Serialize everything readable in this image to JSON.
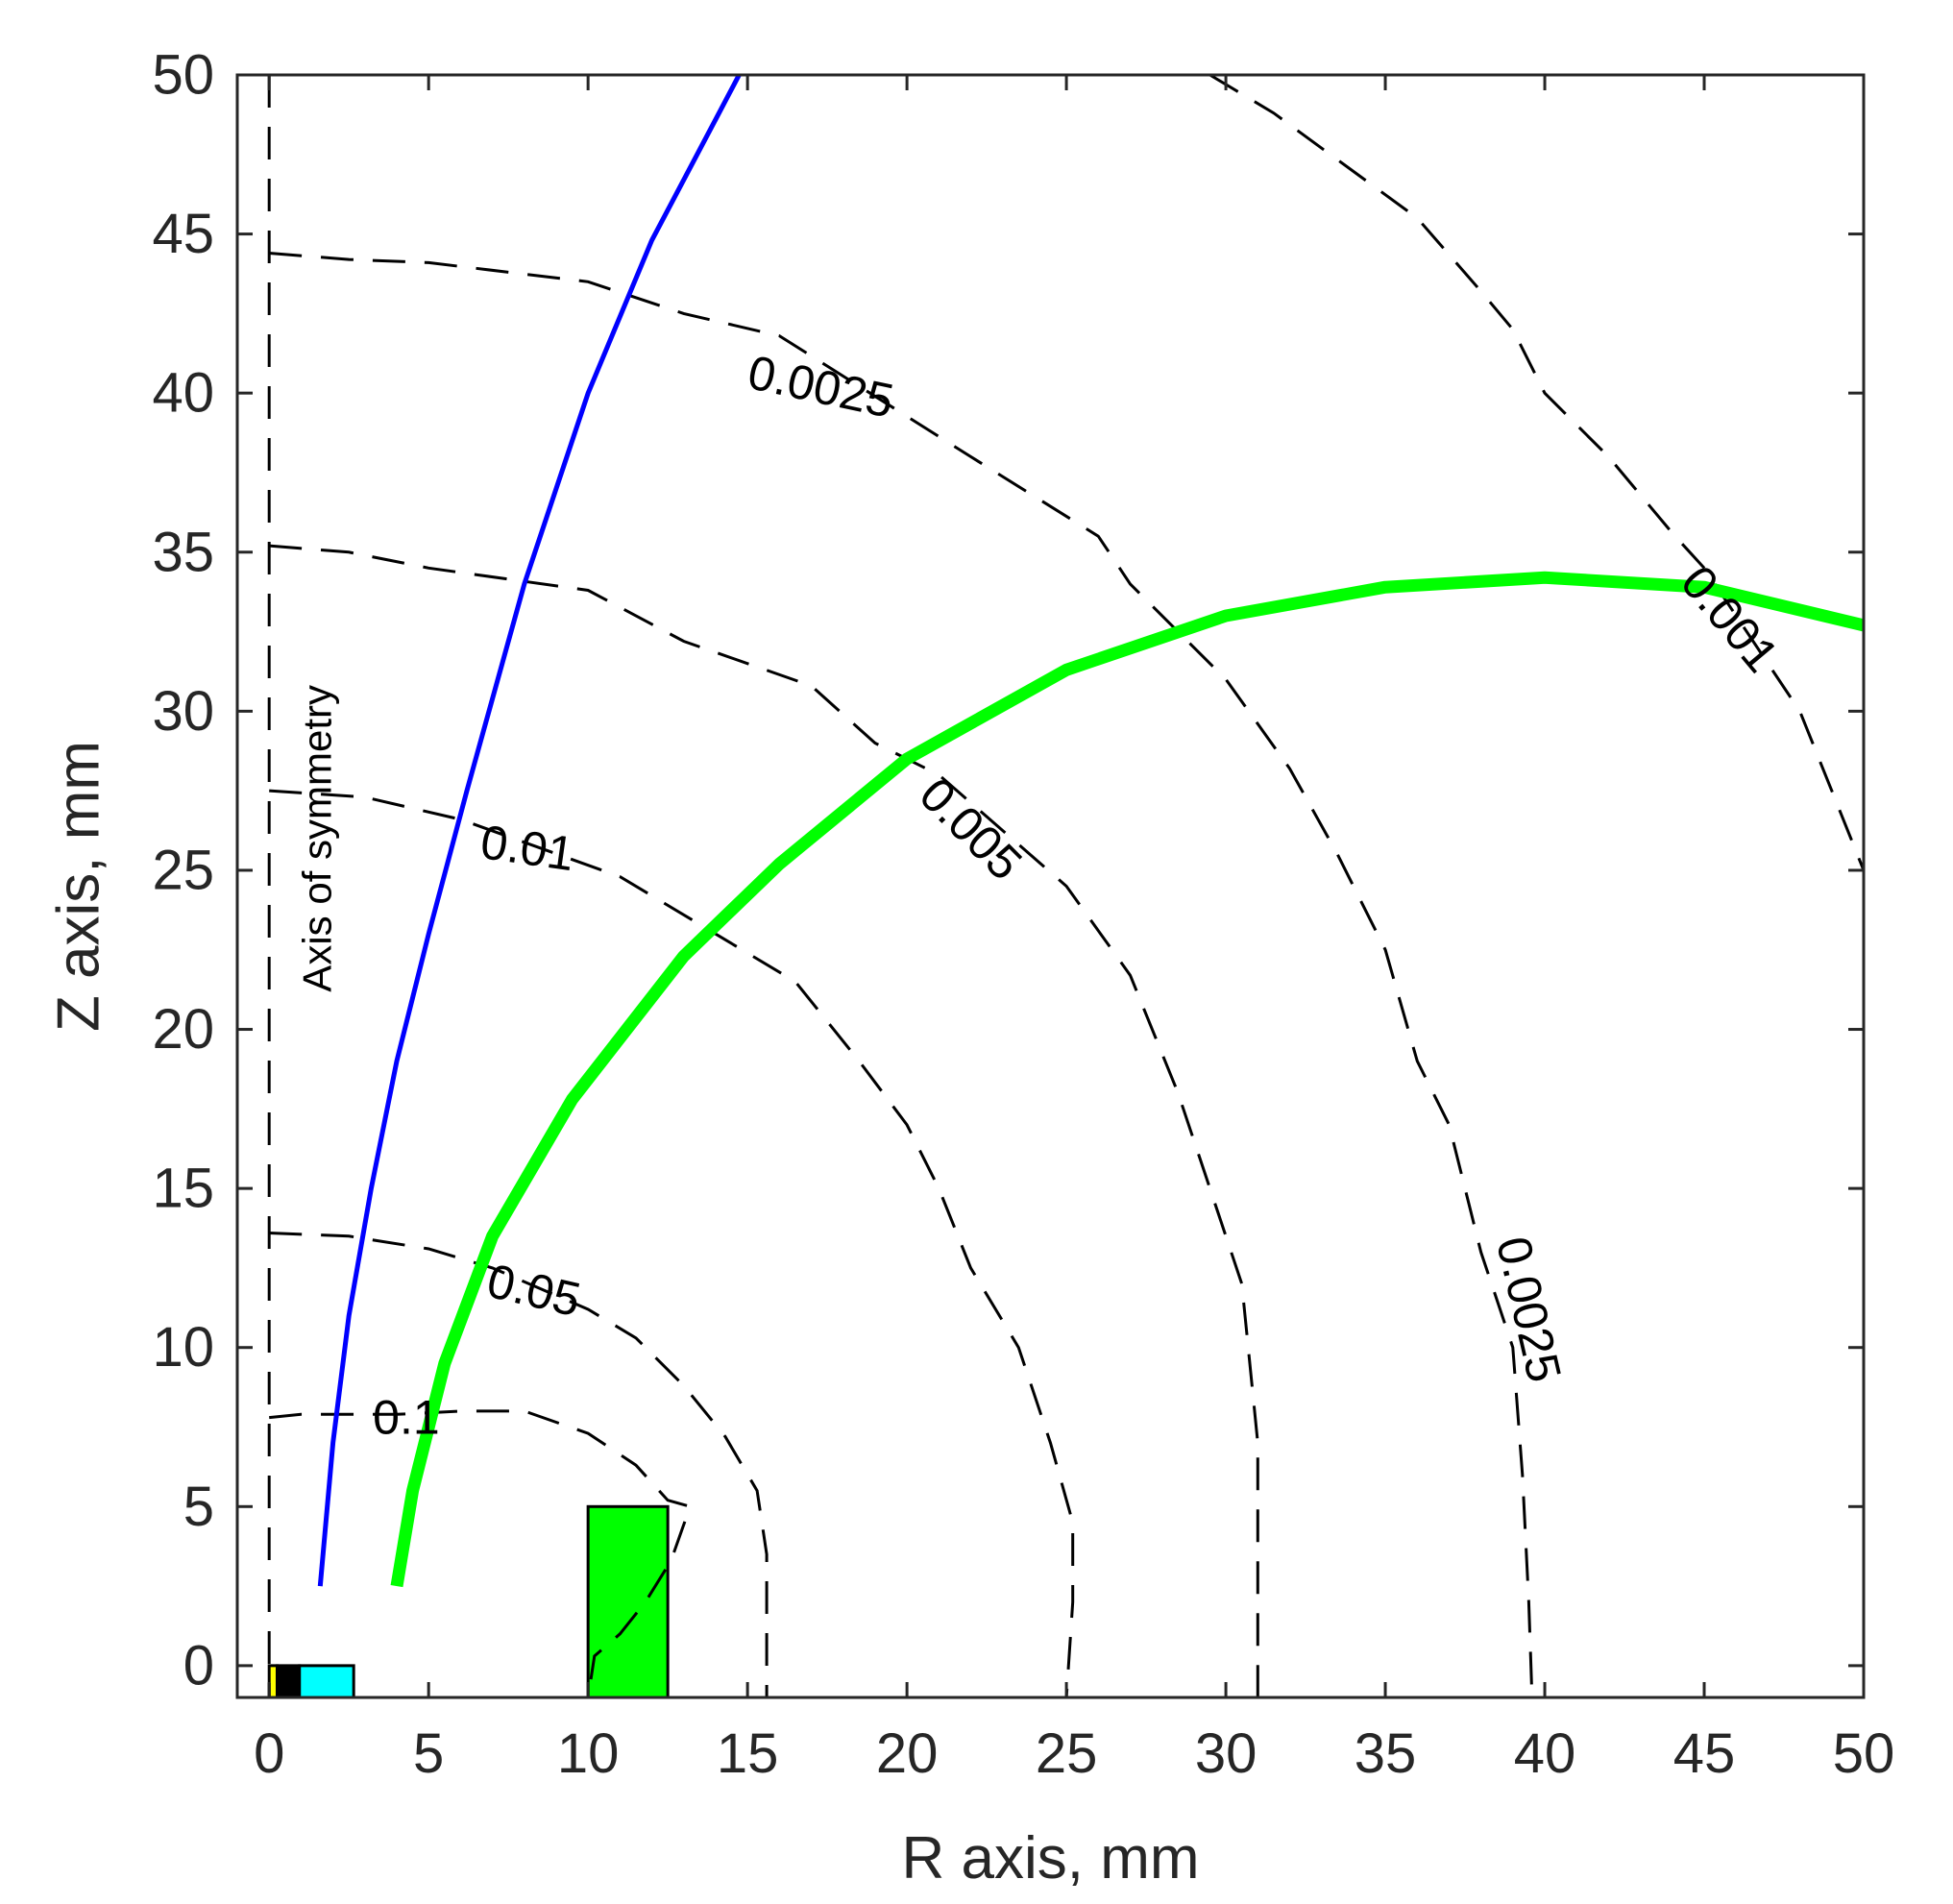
{
  "chart_data": {
    "type": "line",
    "title": "",
    "xlabel": "R axis, mm",
    "ylabel": "Z axis, mm",
    "xlim": [
      -1,
      50
    ],
    "ylim": [
      -1,
      50
    ],
    "x_ticks": [
      0,
      5,
      10,
      15,
      20,
      25,
      30,
      35,
      40,
      45,
      50
    ],
    "y_ticks": [
      0,
      5,
      10,
      15,
      20,
      25,
      30,
      35,
      40,
      45,
      50
    ],
    "grid": false,
    "legend": "none",
    "annotations": [
      {
        "text": "Axis of symmetry",
        "x": 1.5,
        "y": 26
      }
    ],
    "contours": [
      {
        "level": "0.1",
        "labels": [
          {
            "text": "0.1",
            "x": 4.3,
            "y": 7.8,
            "angle": 0
          }
        ],
        "points": [
          [
            0,
            7.8
          ],
          [
            1,
            7.9
          ],
          [
            2,
            7.9
          ],
          [
            4,
            7.9
          ],
          [
            6,
            8.0
          ],
          [
            8,
            8.0
          ],
          [
            10,
            7.3
          ],
          [
            11.5,
            6.3
          ],
          [
            12.5,
            5.2
          ],
          [
            13.2,
            5.0
          ],
          [
            12.6,
            3.3
          ],
          [
            11.8,
            2.0
          ],
          [
            11,
            1.0
          ],
          [
            10.2,
            0.3
          ],
          [
            10,
            -1
          ]
        ]
      },
      {
        "level": "0.05",
        "labels": [
          {
            "text": "0.05",
            "x": 8.3,
            "y": 11.8,
            "angle": 13
          }
        ],
        "points": [
          [
            0,
            13.6
          ],
          [
            2.5,
            13.5
          ],
          [
            5,
            13.1
          ],
          [
            7,
            12.5
          ],
          [
            10,
            11.2
          ],
          [
            11.5,
            10.3
          ],
          [
            13,
            8.8
          ],
          [
            14.3,
            7.2
          ],
          [
            15.3,
            5.5
          ],
          [
            15.6,
            3.5
          ],
          [
            15.6,
            1.5
          ],
          [
            15.6,
            -1
          ]
        ]
      },
      {
        "level": "0.01",
        "labels": [
          {
            "text": "0.01",
            "x": 8.1,
            "y": 25.7,
            "angle": 8
          }
        ],
        "points": [
          [
            0,
            27.5
          ],
          [
            3,
            27.3
          ],
          [
            6,
            26.6
          ],
          [
            11,
            24.8
          ],
          [
            14,
            23.0
          ],
          [
            16.5,
            21.5
          ],
          [
            18.5,
            19.0
          ],
          [
            20,
            17.0
          ],
          [
            21,
            15.0
          ],
          [
            22,
            12.5
          ],
          [
            23.5,
            10.0
          ],
          [
            24.5,
            7.0
          ],
          [
            25.2,
            4.5
          ],
          [
            25.2,
            2.0
          ],
          [
            25,
            -1
          ]
        ]
      },
      {
        "level": "0.005",
        "labels": [
          {
            "text": "0.005",
            "x": 22,
            "y": 26.3,
            "angle": 45
          }
        ],
        "points": [
          [
            0,
            35.2
          ],
          [
            2.5,
            35.0
          ],
          [
            5,
            34.5
          ],
          [
            10,
            33.8
          ],
          [
            13,
            32.2
          ],
          [
            17,
            30.8
          ],
          [
            19,
            29.0
          ],
          [
            21,
            28.0
          ],
          [
            25,
            24.5
          ],
          [
            27,
            21.7
          ],
          [
            28.5,
            18.0
          ],
          [
            29.5,
            15.0
          ],
          [
            30.5,
            12.0
          ],
          [
            31,
            7.0
          ],
          [
            31,
            2.0
          ],
          [
            31,
            -1
          ]
        ]
      },
      {
        "level": "0.0025",
        "labels": [
          {
            "text": "0.0025",
            "x": 17.3,
            "y": 40.2,
            "angle": 12
          },
          {
            "text": "0.0025",
            "x": 39.5,
            "y": 11.2,
            "angle": 77
          }
        ],
        "points": [
          [
            0,
            44.4
          ],
          [
            2.5,
            44.2
          ],
          [
            5,
            44.1
          ],
          [
            10,
            43.5
          ],
          [
            13,
            42.5
          ],
          [
            16,
            41.8
          ],
          [
            22,
            38.0
          ],
          [
            26,
            35.5
          ],
          [
            27,
            34.0
          ],
          [
            30,
            31.0
          ],
          [
            32,
            28.2
          ],
          [
            33.5,
            25.5
          ],
          [
            35,
            22.5
          ],
          [
            36,
            19.0
          ],
          [
            37,
            17.0
          ],
          [
            38,
            13.0
          ],
          [
            39,
            10.0
          ],
          [
            39.3,
            6.0
          ],
          [
            39.5,
            2.0
          ],
          [
            39.6,
            -1
          ]
        ]
      },
      {
        "level": "0.001",
        "labels": [
          {
            "text": "0.001",
            "x": 45.8,
            "y": 32.9,
            "angle": 50
          }
        ],
        "points": [
          [
            29.5,
            50
          ],
          [
            31.5,
            48.8
          ],
          [
            33,
            47.7
          ],
          [
            36,
            45.5
          ],
          [
            38,
            43.2
          ],
          [
            39,
            42.0
          ],
          [
            40,
            40.0
          ],
          [
            42,
            38.0
          ],
          [
            44,
            35.6
          ],
          [
            45,
            34.5
          ],
          [
            47,
            31.5
          ],
          [
            48,
            30.0
          ],
          [
            49,
            27.5
          ],
          [
            50,
            25.0
          ]
        ]
      }
    ],
    "series": [
      {
        "color": "#0000ff",
        "width": 5,
        "points": [
          [
            1.6,
            2.5
          ],
          [
            2,
            7.0
          ],
          [
            2.5,
            11.0
          ],
          [
            3.2,
            15.0
          ],
          [
            4.0,
            19.0
          ],
          [
            5.0,
            23.0
          ],
          [
            6.2,
            27.5
          ],
          [
            8,
            34.0
          ],
          [
            10,
            40.0
          ],
          [
            12,
            44.8
          ],
          [
            14,
            48.6
          ],
          [
            15,
            50.5
          ]
        ]
      },
      {
        "color": "#00ff00",
        "width": 13,
        "points": [
          [
            4.0,
            2.5
          ],
          [
            4.5,
            5.5
          ],
          [
            5.5,
            9.5
          ],
          [
            7,
            13.5
          ],
          [
            9.5,
            17.8
          ],
          [
            13,
            22.3
          ],
          [
            16,
            25.2
          ],
          [
            20,
            28.5
          ],
          [
            25,
            31.3
          ],
          [
            30,
            33.0
          ],
          [
            35,
            33.9
          ],
          [
            40,
            34.2
          ],
          [
            45,
            33.9
          ],
          [
            50,
            32.7
          ]
        ]
      }
    ],
    "shapes": [
      {
        "kind": "rect",
        "x": 10,
        "y": -1,
        "w": 2.5,
        "h": 6,
        "color": "#00ff00"
      },
      {
        "kind": "rect",
        "x": 0,
        "y": -1,
        "w": 0.25,
        "h": 1,
        "color": "#ffff00"
      },
      {
        "kind": "rect",
        "x": 0.25,
        "y": -1,
        "w": 0.7,
        "h": 1,
        "color": "#000000"
      },
      {
        "kind": "rect",
        "x": 0.95,
        "y": -1,
        "w": 1.7,
        "h": 1,
        "color": "#00ffff"
      }
    ],
    "axis_of_symmetry": {
      "x": 0,
      "style": "dashed"
    }
  }
}
